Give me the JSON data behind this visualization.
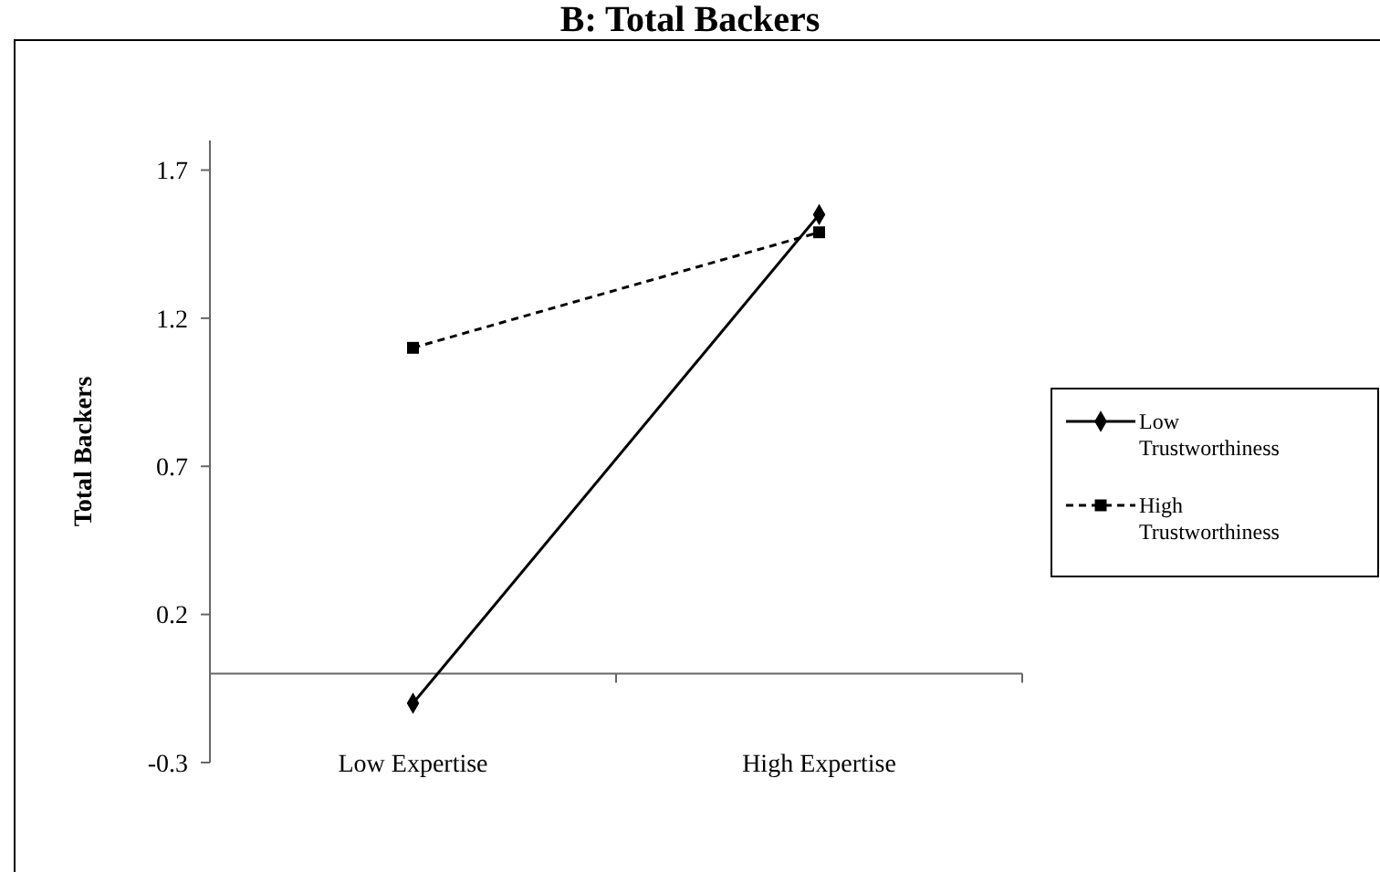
{
  "chart_data": {
    "type": "line",
    "title": "B: Total Backers",
    "ylabel": "Total Backers",
    "categories": [
      "Low Expertise",
      "High Expertise"
    ],
    "series": [
      {
        "name": "Low Trustworthiness",
        "color": "#000000",
        "values": [
          -0.1,
          1.55
        ],
        "marker": "diamond",
        "line_style": "solid"
      },
      {
        "name": "High Trustworthiness",
        "color": "#000000",
        "values": [
          1.1,
          1.49
        ],
        "marker": "square",
        "line_style": "dashed"
      }
    ],
    "ylim": [
      -0.3,
      1.8
    ],
    "yticks": [
      -0.3,
      0.2,
      0.7,
      1.2,
      1.7
    ],
    "grid": false,
    "legend": "right"
  }
}
